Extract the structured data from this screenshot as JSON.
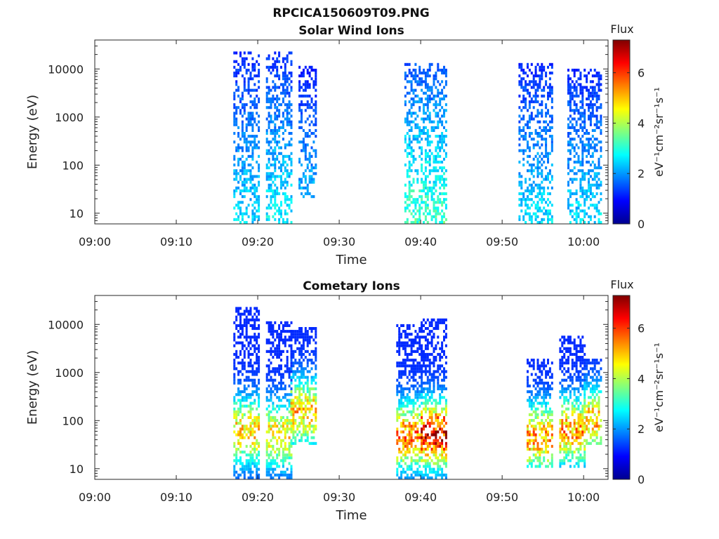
{
  "figure": {
    "title": "RPCICA150609T09.PNG"
  },
  "chart_data": [
    {
      "type": "heatmap",
      "title": "Solar Wind Ions",
      "xlabel": "Time",
      "ylabel": "Energy (eV)",
      "x_tick_labels": [
        "09:00",
        "09:10",
        "09:20",
        "09:30",
        "09:40",
        "09:50",
        "10:00"
      ],
      "x_range_minutes_after_0900": [
        0,
        63
      ],
      "y_scale": "log",
      "y_tick_labels": [
        "10",
        "100",
        "1000",
        "10000"
      ],
      "y_range": [
        6,
        40000
      ],
      "colorbar": {
        "title": "Flux",
        "unit_label": "eV⁻¹cm⁻²sr⁻¹s⁻¹",
        "tick_labels": [
          "0",
          "2",
          "4",
          "6"
        ],
        "range": [
          0,
          7.3
        ],
        "colormap": "jet"
      },
      "bursts": [
        {
          "t_start": "09:17",
          "t_end": "09:20",
          "e_min": 6,
          "e_max": 22000,
          "peak_flux": 3.0
        },
        {
          "t_start": "09:21",
          "t_end": "09:24",
          "e_min": 6,
          "e_max": 22000,
          "peak_flux": 3.2
        },
        {
          "t_start": "09:25",
          "t_end": "09:27",
          "e_min": 20,
          "e_max": 12000,
          "peak_flux": 2.6
        },
        {
          "t_start": "09:38",
          "t_end": "09:43",
          "e_min": 6,
          "e_max": 14000,
          "peak_flux": 3.8
        },
        {
          "t_start": "09:52",
          "t_end": "09:56",
          "e_min": 6,
          "e_max": 14000,
          "peak_flux": 3.0
        },
        {
          "t_start": "09:58",
          "t_end": "10:02",
          "e_min": 6,
          "e_max": 10000,
          "peak_flux": 3.0
        }
      ]
    },
    {
      "type": "heatmap",
      "title": "Cometary Ions",
      "xlabel": "Time",
      "ylabel": "Energy (eV)",
      "x_tick_labels": [
        "09:00",
        "09:10",
        "09:20",
        "09:30",
        "09:40",
        "09:50",
        "10:00"
      ],
      "x_range_minutes_after_0900": [
        0,
        63
      ],
      "y_scale": "log",
      "y_tick_labels": [
        "10",
        "100",
        "1000",
        "10000"
      ],
      "y_range": [
        6,
        40000
      ],
      "colorbar": {
        "title": "Flux",
        "unit_label": "eV⁻¹cm⁻²sr⁻¹s⁻¹",
        "tick_labels": [
          "0",
          "2",
          "4",
          "6"
        ],
        "range": [
          0,
          7.3
        ],
        "colormap": "jet"
      },
      "bursts": [
        {
          "t_start": "09:17",
          "t_end": "09:20",
          "e_min": 6,
          "e_max": 22000,
          "peak_flux": 4.5
        },
        {
          "t_start": "09:21",
          "t_end": "09:24",
          "e_min": 6,
          "e_max": 12000,
          "peak_flux": 4.3
        },
        {
          "t_start": "09:24",
          "t_end": "09:27",
          "e_min": 30,
          "e_max": 9000,
          "peak_flux": 4.6
        },
        {
          "t_start": "09:37",
          "t_end": "09:40",
          "e_min": 6,
          "e_max": 10000,
          "peak_flux": 5.3
        },
        {
          "t_start": "09:40",
          "t_end": "09:43",
          "e_min": 6,
          "e_max": 14000,
          "peak_flux": 6.5
        },
        {
          "t_start": "09:53",
          "t_end": "09:56",
          "e_min": 10,
          "e_max": 2000,
          "peak_flux": 5.0
        },
        {
          "t_start": "09:57",
          "t_end": "10:00",
          "e_min": 10,
          "e_max": 6000,
          "peak_flux": 5.0
        },
        {
          "t_start": "10:00",
          "t_end": "10:02",
          "e_min": 30,
          "e_max": 2000,
          "peak_flux": 4.8
        }
      ]
    }
  ]
}
